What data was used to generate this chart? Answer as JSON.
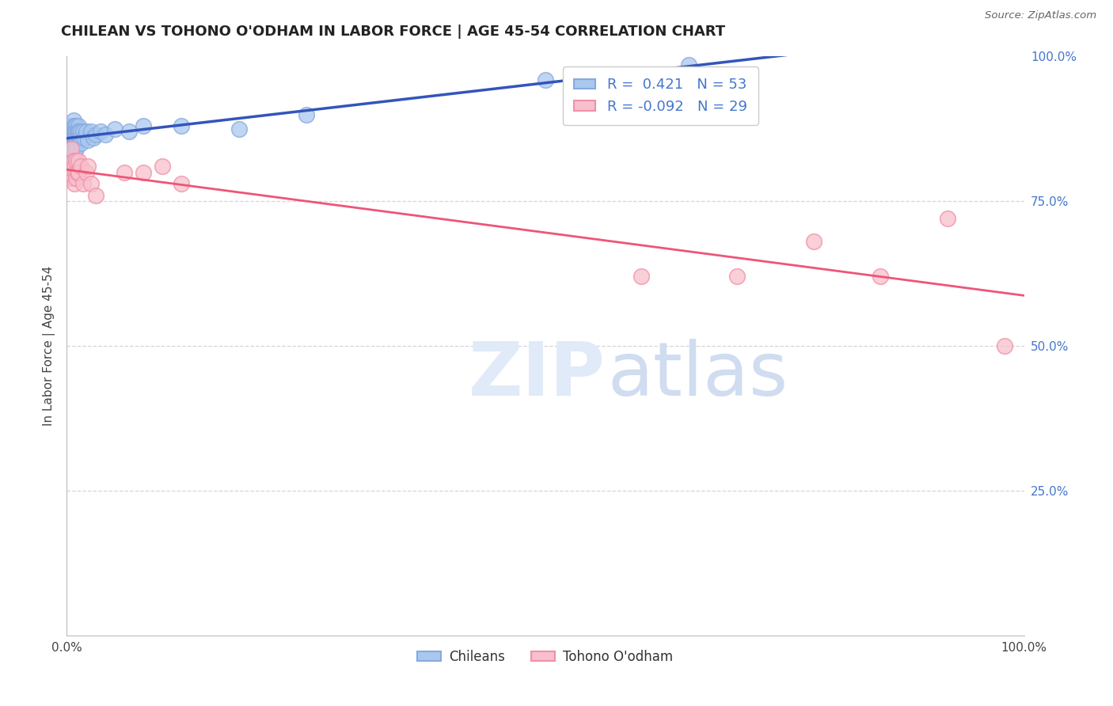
{
  "title": "CHILEAN VS TOHONO O'ODHAM IN LABOR FORCE | AGE 45-54 CORRELATION CHART",
  "source": "Source: ZipAtlas.com",
  "ylabel": "In Labor Force | Age 45-54",
  "xlim": [
    0,
    1
  ],
  "ylim": [
    0,
    1
  ],
  "blue_R": 0.421,
  "blue_N": 53,
  "pink_R": -0.092,
  "pink_N": 29,
  "blue_fill_color": "#A8C8F0",
  "blue_edge_color": "#88AADD",
  "pink_fill_color": "#F8C0CC",
  "pink_edge_color": "#F090A8",
  "blue_line_color": "#3355BB",
  "pink_line_color": "#EE5577",
  "tick_color": "#4477CC",
  "legend_label_blue": "Chileans",
  "legend_label_pink": "Tohono O'odham",
  "blue_dots": [
    [
      0.002,
      0.86
    ],
    [
      0.003,
      0.87
    ],
    [
      0.004,
      0.88
    ],
    [
      0.004,
      0.84
    ],
    [
      0.005,
      0.87
    ],
    [
      0.005,
      0.85
    ],
    [
      0.005,
      0.83
    ],
    [
      0.006,
      0.88
    ],
    [
      0.006,
      0.86
    ],
    [
      0.006,
      0.85
    ],
    [
      0.007,
      0.89
    ],
    [
      0.007,
      0.87
    ],
    [
      0.007,
      0.85
    ],
    [
      0.007,
      0.83
    ],
    [
      0.008,
      0.88
    ],
    [
      0.008,
      0.87
    ],
    [
      0.008,
      0.85
    ],
    [
      0.008,
      0.84
    ],
    [
      0.008,
      0.83
    ],
    [
      0.009,
      0.87
    ],
    [
      0.009,
      0.86
    ],
    [
      0.009,
      0.85
    ],
    [
      0.01,
      0.88
    ],
    [
      0.01,
      0.87
    ],
    [
      0.01,
      0.86
    ],
    [
      0.01,
      0.85
    ],
    [
      0.01,
      0.84
    ],
    [
      0.011,
      0.87
    ],
    [
      0.011,
      0.86
    ],
    [
      0.012,
      0.88
    ],
    [
      0.012,
      0.87
    ],
    [
      0.013,
      0.87
    ],
    [
      0.013,
      0.86
    ],
    [
      0.014,
      0.86
    ],
    [
      0.015,
      0.87
    ],
    [
      0.015,
      0.85
    ],
    [
      0.017,
      0.87
    ],
    [
      0.018,
      0.86
    ],
    [
      0.02,
      0.87
    ],
    [
      0.022,
      0.855
    ],
    [
      0.025,
      0.87
    ],
    [
      0.028,
      0.86
    ],
    [
      0.03,
      0.865
    ],
    [
      0.035,
      0.87
    ],
    [
      0.04,
      0.865
    ],
    [
      0.05,
      0.875
    ],
    [
      0.065,
      0.87
    ],
    [
      0.08,
      0.88
    ],
    [
      0.12,
      0.88
    ],
    [
      0.18,
      0.875
    ],
    [
      0.25,
      0.9
    ],
    [
      0.5,
      0.96
    ],
    [
      0.65,
      0.985
    ]
  ],
  "pink_dots": [
    [
      0.003,
      0.79
    ],
    [
      0.005,
      0.84
    ],
    [
      0.006,
      0.8
    ],
    [
      0.007,
      0.82
    ],
    [
      0.007,
      0.79
    ],
    [
      0.008,
      0.81
    ],
    [
      0.008,
      0.78
    ],
    [
      0.009,
      0.8
    ],
    [
      0.01,
      0.82
    ],
    [
      0.01,
      0.79
    ],
    [
      0.011,
      0.8
    ],
    [
      0.012,
      0.82
    ],
    [
      0.012,
      0.8
    ],
    [
      0.015,
      0.81
    ],
    [
      0.017,
      0.78
    ],
    [
      0.02,
      0.8
    ],
    [
      0.022,
      0.81
    ],
    [
      0.025,
      0.78
    ],
    [
      0.03,
      0.76
    ],
    [
      0.06,
      0.8
    ],
    [
      0.08,
      0.8
    ],
    [
      0.1,
      0.81
    ],
    [
      0.12,
      0.78
    ],
    [
      0.6,
      0.62
    ],
    [
      0.7,
      0.62
    ],
    [
      0.78,
      0.68
    ],
    [
      0.85,
      0.62
    ],
    [
      0.92,
      0.72
    ],
    [
      0.98,
      0.5
    ]
  ]
}
